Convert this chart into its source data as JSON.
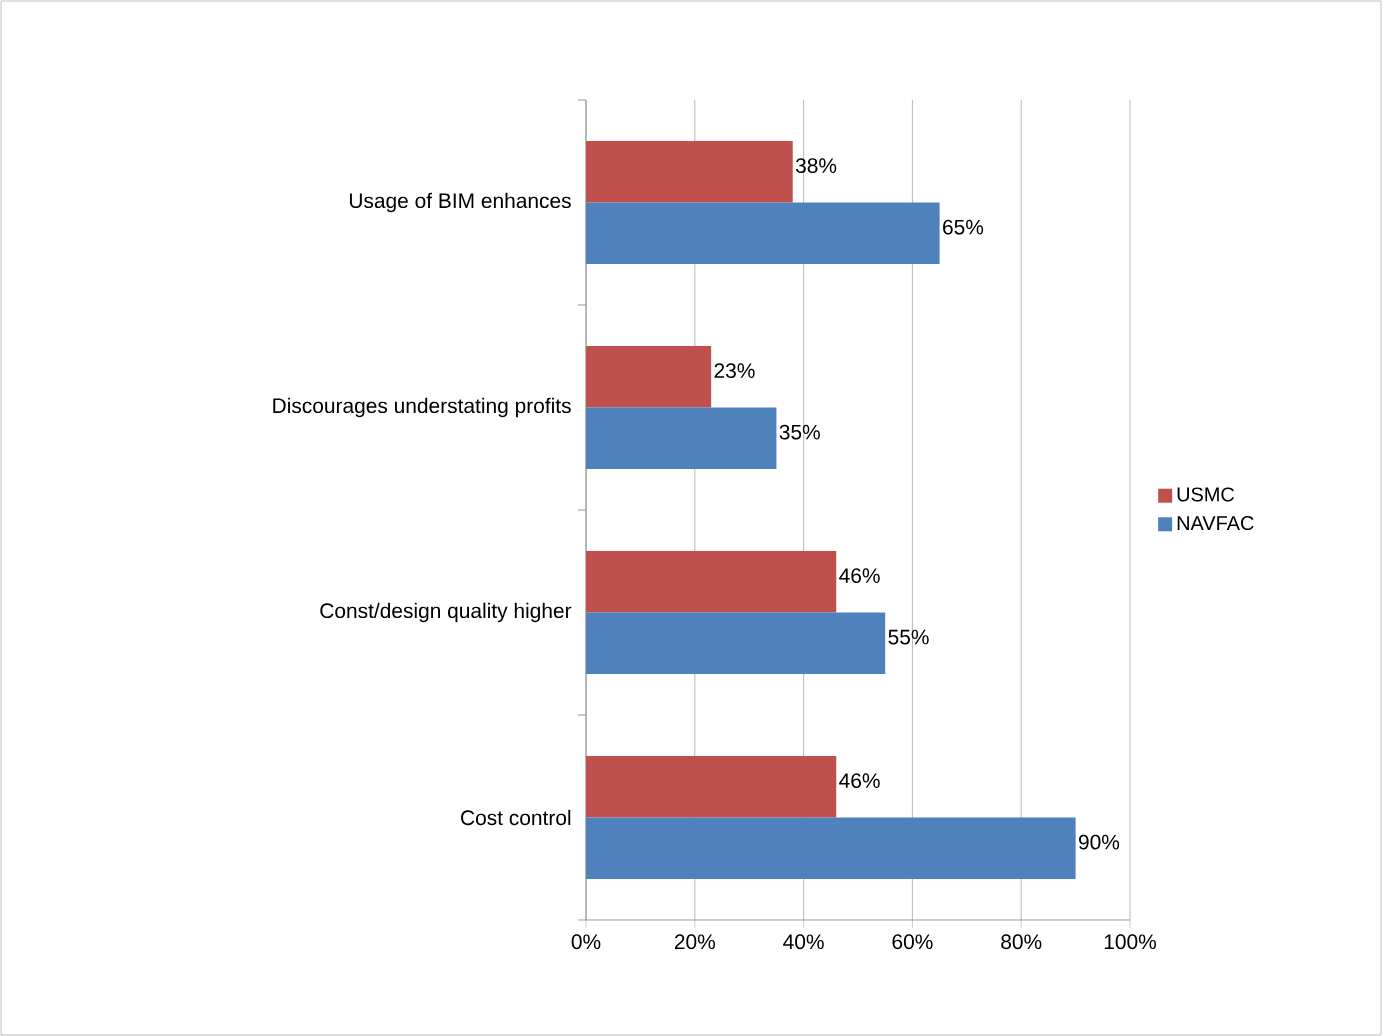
{
  "chart_data": {
    "type": "bar",
    "orientation": "horizontal",
    "categories": [
      "Usage of BIM enhances",
      "Discourages understating  profits",
      "Const/design quality higher",
      "Cost control"
    ],
    "series": [
      {
        "name": "USMC",
        "color": "#c0504d",
        "values": [
          38,
          23,
          46,
          46
        ],
        "value_labels": [
          "38%",
          "23%",
          "46%",
          "46%"
        ]
      },
      {
        "name": "NAVFAC",
        "color": "#4f81bd",
        "values": [
          65,
          35,
          55,
          90
        ],
        "value_labels": [
          "65%",
          "35%",
          "55%",
          "90%"
        ]
      }
    ],
    "xlim": [
      0,
      100
    ],
    "xticks": [
      {
        "value": 0,
        "label": "0%"
      },
      {
        "value": 20,
        "label": "20%"
      },
      {
        "value": 40,
        "label": "40%"
      },
      {
        "value": 60,
        "label": "60%"
      },
      {
        "value": 80,
        "label": "80%"
      },
      {
        "value": 100,
        "label": "100%"
      }
    ],
    "grid": "x",
    "legend": "right"
  }
}
